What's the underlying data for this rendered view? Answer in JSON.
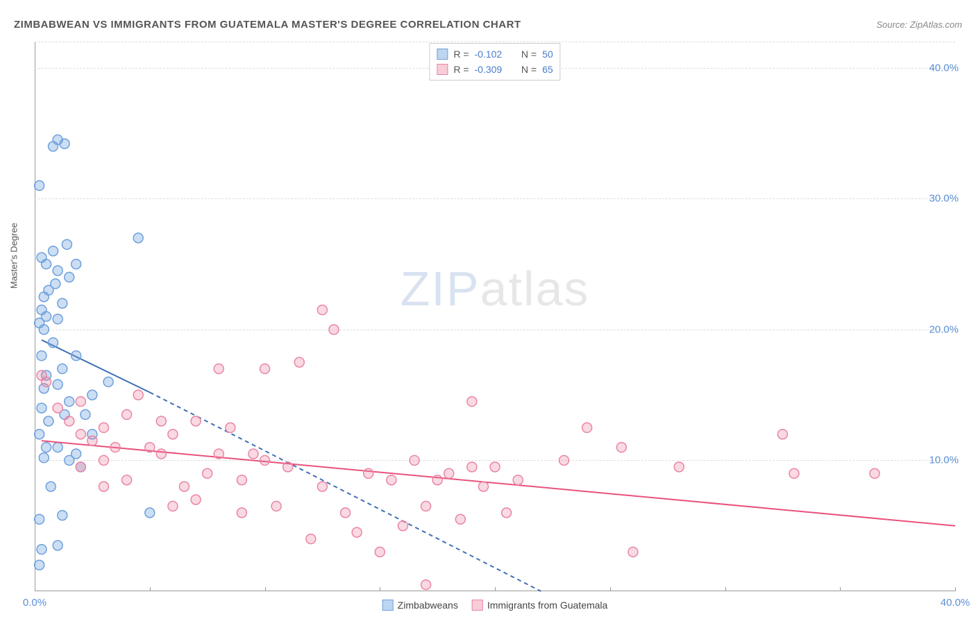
{
  "header": {
    "title": "ZIMBABWEAN VS IMMIGRANTS FROM GUATEMALA MASTER'S DEGREE CORRELATION CHART",
    "source_prefix": "Source: ",
    "source_name": "ZipAtlas.com"
  },
  "watermark": {
    "zip": "ZIP",
    "atlas": "atlas"
  },
  "chart": {
    "type": "scatter",
    "ylabel": "Master's Degree",
    "xlim": [
      0,
      40
    ],
    "ylim": [
      0,
      42
    ],
    "x_ticks": [
      0,
      5,
      10,
      15,
      20,
      25,
      30,
      35,
      40
    ],
    "x_tick_labels": {
      "0": "0.0%",
      "40": "40.0%"
    },
    "y_gridlines": [
      10,
      20,
      30,
      40
    ],
    "y_tick_labels": {
      "10": "10.0%",
      "20": "20.0%",
      "30": "30.0%",
      "40": "40.0%"
    },
    "grid_color": "#dddddd",
    "axis_color": "#999999",
    "background_color": "#ffffff",
    "tick_label_color": "#5b8fd6",
    "marker_radius": 7,
    "marker_stroke_width": 1.5,
    "series": [
      {
        "name": "Zimbabweans",
        "color_fill": "rgba(110,160,220,0.35)",
        "color_stroke": "#6ea0dc",
        "swatch_fill": "#bcd5f0",
        "swatch_border": "#6ea0dc",
        "R": "-0.102",
        "N": "50",
        "trend": {
          "solid": [
            [
              0.3,
              19.2
            ],
            [
              5,
              15.2
            ]
          ],
          "dashed": [
            [
              5,
              15.2
            ],
            [
              22,
              0
            ]
          ],
          "color": "#3f6fb5",
          "width": 2
        },
        "points": [
          [
            0.2,
            2.0
          ],
          [
            0.3,
            3.2
          ],
          [
            1.0,
            3.5
          ],
          [
            0.2,
            5.5
          ],
          [
            1.2,
            5.8
          ],
          [
            1.5,
            10.0
          ],
          [
            0.4,
            10.2
          ],
          [
            1.8,
            10.5
          ],
          [
            0.5,
            11.0
          ],
          [
            1.0,
            11.0
          ],
          [
            0.2,
            12.0
          ],
          [
            1.3,
            13.5
          ],
          [
            2.2,
            13.5
          ],
          [
            0.3,
            14.0
          ],
          [
            1.5,
            14.5
          ],
          [
            2.5,
            15.0
          ],
          [
            0.4,
            15.5
          ],
          [
            1.0,
            15.8
          ],
          [
            3.2,
            16.0
          ],
          [
            0.5,
            16.5
          ],
          [
            1.2,
            17.0
          ],
          [
            0.3,
            18.0
          ],
          [
            0.8,
            19.0
          ],
          [
            0.4,
            20.0
          ],
          [
            0.2,
            20.5
          ],
          [
            1.0,
            20.8
          ],
          [
            0.5,
            21.0
          ],
          [
            0.3,
            21.5
          ],
          [
            1.2,
            22.0
          ],
          [
            0.4,
            22.5
          ],
          [
            0.6,
            23.0
          ],
          [
            1.5,
            24.0
          ],
          [
            1.0,
            24.5
          ],
          [
            0.5,
            25.0
          ],
          [
            1.8,
            25.0
          ],
          [
            0.3,
            25.5
          ],
          [
            0.8,
            26.0
          ],
          [
            4.5,
            27.0
          ],
          [
            0.2,
            31.0
          ],
          [
            0.8,
            34.0
          ],
          [
            1.3,
            34.2
          ],
          [
            1.0,
            34.5
          ],
          [
            5.0,
            6.0
          ],
          [
            2.0,
            9.5
          ],
          [
            2.5,
            12.0
          ],
          [
            0.6,
            13.0
          ],
          [
            1.8,
            18.0
          ],
          [
            0.9,
            23.5
          ],
          [
            1.4,
            26.5
          ],
          [
            0.7,
            8.0
          ]
        ]
      },
      {
        "name": "Immigrants from Guatemala",
        "color_fill": "rgba(235,130,160,0.30)",
        "color_stroke": "#e985a3",
        "swatch_fill": "#f7cdd8",
        "swatch_border": "#e985a3",
        "R": "-0.309",
        "N": "65",
        "trend": {
          "solid": [
            [
              0.3,
              11.5
            ],
            [
              40,
              5.0
            ]
          ],
          "dashed": null,
          "color": "#e9517c",
          "width": 2
        },
        "points": [
          [
            0.5,
            16.0
          ],
          [
            0.3,
            16.5
          ],
          [
            1.0,
            14.0
          ],
          [
            1.5,
            13.0
          ],
          [
            2.0,
            12.0
          ],
          [
            2.5,
            11.5
          ],
          [
            3.0,
            12.5
          ],
          [
            3.5,
            11.0
          ],
          [
            4.0,
            13.5
          ],
          [
            4.5,
            15.0
          ],
          [
            2.0,
            14.5
          ],
          [
            3.0,
            10.0
          ],
          [
            5.0,
            11.0
          ],
          [
            5.5,
            10.5
          ],
          [
            6.0,
            12.0
          ],
          [
            6.5,
            8.0
          ],
          [
            7.0,
            13.0
          ],
          [
            7.5,
            9.0
          ],
          [
            7.0,
            7.0
          ],
          [
            8.0,
            17.0
          ],
          [
            8.5,
            12.5
          ],
          [
            9.0,
            8.5
          ],
          [
            9.5,
            10.5
          ],
          [
            10.0,
            17.0
          ],
          [
            10.5,
            6.5
          ],
          [
            11.0,
            9.5
          ],
          [
            11.5,
            17.5
          ],
          [
            12.0,
            4.0
          ],
          [
            12.5,
            8.0
          ],
          [
            13.0,
            20.0
          ],
          [
            12.5,
            21.5
          ],
          [
            13.5,
            6.0
          ],
          [
            14.0,
            4.5
          ],
          [
            14.5,
            9.0
          ],
          [
            15.0,
            3.0
          ],
          [
            15.5,
            8.5
          ],
          [
            16.0,
            5.0
          ],
          [
            16.5,
            10.0
          ],
          [
            17.0,
            6.5
          ],
          [
            17.5,
            8.5
          ],
          [
            17.0,
            0.5
          ],
          [
            18.0,
            9.0
          ],
          [
            18.5,
            5.5
          ],
          [
            19.0,
            14.5
          ],
          [
            19.5,
            8.0
          ],
          [
            20.0,
            9.5
          ],
          [
            20.5,
            6.0
          ],
          [
            19.0,
            9.5
          ],
          [
            21.0,
            8.5
          ],
          [
            23.0,
            10.0
          ],
          [
            24.0,
            12.5
          ],
          [
            25.5,
            11.0
          ],
          [
            26.0,
            3.0
          ],
          [
            28.0,
            9.5
          ],
          [
            32.5,
            12.0
          ],
          [
            33.0,
            9.0
          ],
          [
            36.5,
            9.0
          ],
          [
            4.0,
            8.5
          ],
          [
            5.5,
            13.0
          ],
          [
            8.0,
            10.5
          ],
          [
            9.0,
            6.0
          ],
          [
            10.0,
            10.0
          ],
          [
            6.0,
            6.5
          ],
          [
            3.0,
            8.0
          ],
          [
            2.0,
            9.5
          ]
        ]
      }
    ],
    "stats_labels": {
      "R": "R =",
      "N": "N ="
    },
    "legend_items": [
      {
        "name": "Zimbabweans",
        "swatch_fill": "#bcd5f0",
        "swatch_border": "#6ea0dc"
      },
      {
        "name": "Immigrants from Guatemala",
        "swatch_fill": "#f7cdd8",
        "swatch_border": "#e985a3"
      }
    ]
  }
}
